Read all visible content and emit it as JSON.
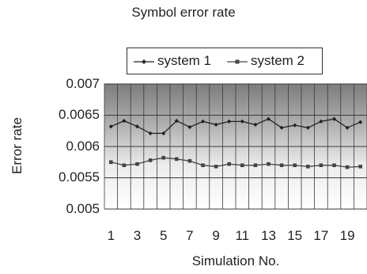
{
  "chart_data": {
    "type": "line",
    "title": "Symbol error rate",
    "xlabel": "Simulation No.",
    "ylabel": "Error rate",
    "x": [
      1,
      2,
      3,
      4,
      5,
      6,
      7,
      8,
      9,
      10,
      11,
      12,
      13,
      14,
      15,
      16,
      17,
      18,
      19,
      20
    ],
    "x_tick_labels": [
      "1",
      "3",
      "5",
      "7",
      "9",
      "11",
      "13",
      "15",
      "17",
      "19"
    ],
    "y_tick_labels": [
      "0.007",
      "0.0065",
      "0.006",
      "0.0055",
      "0.005"
    ],
    "ylim": [
      0.005,
      0.007
    ],
    "grid": "vertical and horizontal",
    "legend_position": "top",
    "series": [
      {
        "name": "system 1",
        "marker": "diamond",
        "color": "#222222",
        "values": [
          0.00632,
          0.00641,
          0.00632,
          0.00621,
          0.00621,
          0.00641,
          0.00631,
          0.0064,
          0.00635,
          0.0064,
          0.0064,
          0.00635,
          0.00644,
          0.0063,
          0.00634,
          0.0063,
          0.0064,
          0.00644,
          0.0063,
          0.00639
        ]
      },
      {
        "name": "system 2",
        "marker": "square",
        "color": "#444444",
        "values": [
          0.00575,
          0.0057,
          0.00572,
          0.00578,
          0.00582,
          0.0058,
          0.00577,
          0.0057,
          0.00568,
          0.00572,
          0.0057,
          0.0057,
          0.00572,
          0.0057,
          0.0057,
          0.00568,
          0.0057,
          0.0057,
          0.00567,
          0.00568
        ]
      }
    ]
  }
}
